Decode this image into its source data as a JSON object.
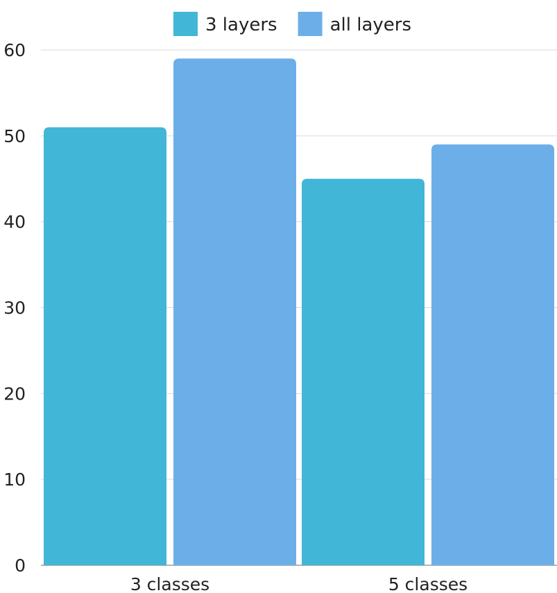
{
  "chart_data": {
    "type": "bar",
    "categories": [
      "3 classes",
      "5 classes"
    ],
    "series": [
      {
        "name": "3 layers",
        "values": [
          51,
          45
        ],
        "color": "#42B6D6"
      },
      {
        "name": "all layers",
        "values": [
          59,
          49
        ],
        "color": "#6CAFE8"
      }
    ],
    "ylim": [
      0,
      60
    ],
    "yticks": [
      0,
      10,
      20,
      30,
      40,
      50,
      60
    ],
    "grid": true,
    "legend_position": "top-center"
  }
}
